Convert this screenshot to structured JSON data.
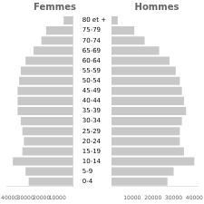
{
  "chart_data": [
    {
      "type": "bar",
      "orientation": "horizontal",
      "title": "Femmes",
      "categories": [
        "0-4",
        "5-9",
        "10-14",
        "15-19",
        "20-24",
        "25-29",
        "30-34",
        "35-39",
        "40-44",
        "45-49",
        "50-54",
        "55-59",
        "60-64",
        "65-69",
        "70-74",
        "75-79",
        "80 et +"
      ],
      "values": [
        28000,
        30000,
        38000,
        32000,
        31000,
        32000,
        33000,
        35000,
        35000,
        35000,
        34000,
        33000,
        30000,
        25000,
        20000,
        17000,
        6000
      ],
      "color": "#c8c8c8",
      "xlim": [
        42000,
        0
      ],
      "xticks": [
        40000,
        30000,
        20000,
        10000
      ],
      "grid": false
    },
    {
      "type": "bar",
      "orientation": "horizontal",
      "title": "Hommes",
      "categories": [
        "0-4",
        "5-9",
        "10-14",
        "15-19",
        "20-24",
        "25-29",
        "30-34",
        "35-39",
        "40-44",
        "45-49",
        "50-54",
        "55-59",
        "60-64",
        "65-69",
        "70-74",
        "75-79",
        "80 et +"
      ],
      "values": [
        27000,
        30000,
        40000,
        35000,
        33000,
        33000,
        34000,
        36000,
        35000,
        34000,
        33000,
        31000,
        28000,
        23000,
        16000,
        11000,
        3000
      ],
      "color": "#c8c8c8",
      "xlim": [
        0,
        42000
      ],
      "xticks": [
        10000,
        20000,
        30000,
        40000
      ],
      "grid": false,
      "tick_labels": "x"
    }
  ]
}
